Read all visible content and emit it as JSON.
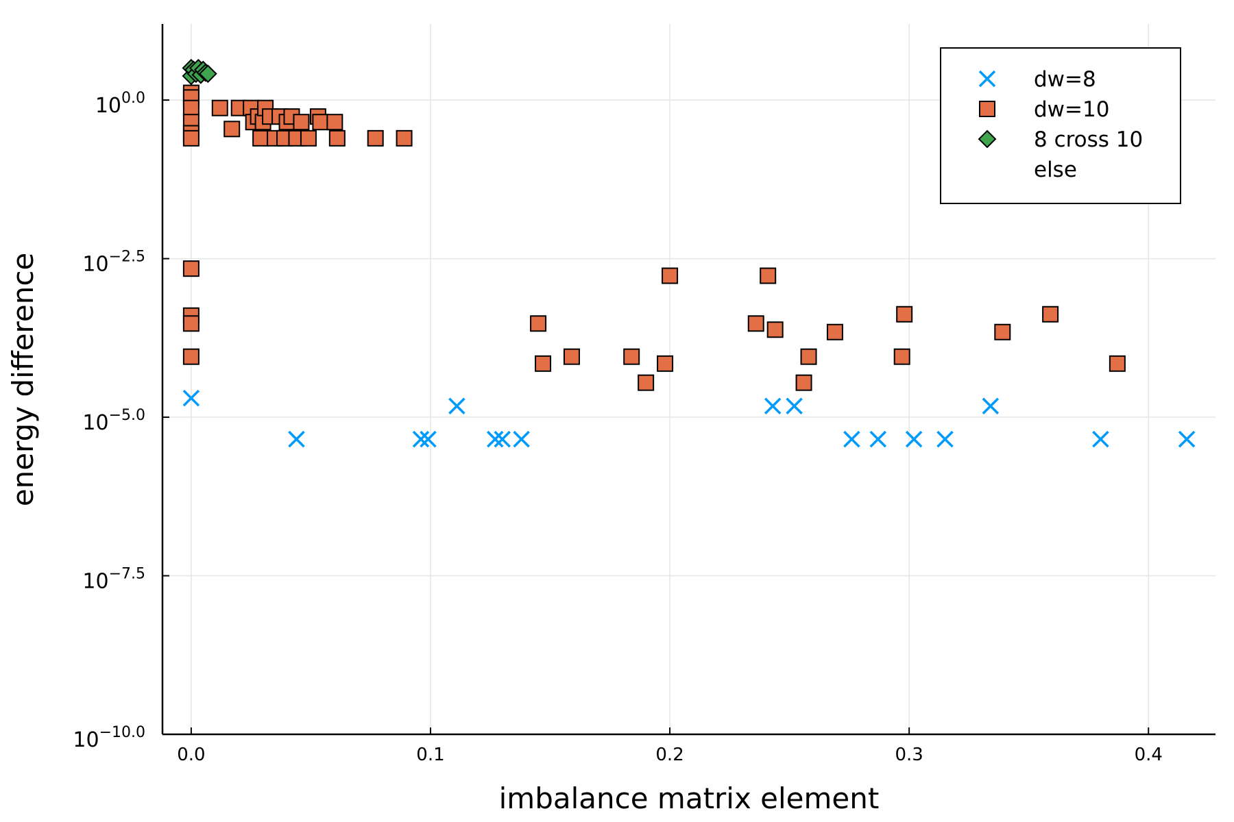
{
  "chart_data": {
    "type": "scatter",
    "title": "",
    "xlabel": "imbalance matrix element",
    "ylabel": "energy difference",
    "xlim": [
      -0.012,
      0.428
    ],
    "ylim_log10": [
      -10.0,
      1.2
    ],
    "yscale": "log10",
    "grid": true,
    "legend_position": "top-right",
    "x_ticks": [
      {
        "value": 0.0,
        "label": "0.0"
      },
      {
        "value": 0.1,
        "label": "0.1"
      },
      {
        "value": 0.2,
        "label": "0.2"
      },
      {
        "value": 0.3,
        "label": "0.3"
      },
      {
        "value": 0.4,
        "label": "0.4"
      }
    ],
    "y_ticks": [
      {
        "log10": 0.0,
        "base": "10",
        "exp": "0.0"
      },
      {
        "log10": -2.5,
        "base": "10",
        "exp": "−2.5"
      },
      {
        "log10": -5.0,
        "base": "10",
        "exp": "−5.0"
      },
      {
        "log10": -7.5,
        "base": "10",
        "exp": "−7.5"
      },
      {
        "log10": -10.0,
        "base": "10",
        "exp": "−10.0"
      }
    ],
    "series": [
      {
        "name": "dw=8",
        "marker": "x",
        "color": "#009AFA",
        "points": [
          [
            0.0,
            2e-05
          ],
          [
            0.044,
            4.5e-06
          ],
          [
            0.096,
            4.5e-06
          ],
          [
            0.099,
            4.5e-06
          ],
          [
            0.111,
            1.5e-05
          ],
          [
            0.127,
            4.5e-06
          ],
          [
            0.13,
            4.5e-06
          ],
          [
            0.138,
            4.5e-06
          ],
          [
            0.243,
            1.5e-05
          ],
          [
            0.252,
            1.5e-05
          ],
          [
            0.276,
            4.5e-06
          ],
          [
            0.287,
            4.5e-06
          ],
          [
            0.302,
            4.5e-06
          ],
          [
            0.315,
            4.5e-06
          ],
          [
            0.334,
            1.5e-05
          ],
          [
            0.38,
            4.5e-06
          ],
          [
            0.416,
            4.5e-06
          ]
        ]
      },
      {
        "name": "dw=10",
        "marker": "square",
        "color": "#E26F46",
        "points": [
          [
            0.0,
            1.3
          ],
          [
            0.0,
            1.1
          ],
          [
            0.0,
            0.75
          ],
          [
            0.0,
            0.45
          ],
          [
            0.0,
            0.3
          ],
          [
            0.0,
            0.25
          ],
          [
            0.012,
            0.75
          ],
          [
            0.017,
            0.35
          ],
          [
            0.02,
            0.75
          ],
          [
            0.025,
            0.75
          ],
          [
            0.026,
            0.45
          ],
          [
            0.028,
            0.55
          ],
          [
            0.029,
            0.25
          ],
          [
            0.03,
            0.45
          ],
          [
            0.031,
            0.75
          ],
          [
            0.033,
            0.55
          ],
          [
            0.035,
            0.25
          ],
          [
            0.037,
            0.55
          ],
          [
            0.039,
            0.25
          ],
          [
            0.04,
            0.45
          ],
          [
            0.042,
            0.55
          ],
          [
            0.044,
            0.25
          ],
          [
            0.046,
            0.45
          ],
          [
            0.049,
            0.25
          ],
          [
            0.053,
            0.55
          ],
          [
            0.054,
            0.45
          ],
          [
            0.06,
            0.45
          ],
          [
            0.061,
            0.25
          ],
          [
            0.077,
            0.25
          ],
          [
            0.089,
            0.25
          ],
          [
            0.0,
            0.0022
          ],
          [
            0.0,
            0.0004
          ],
          [
            0.0,
            0.0003
          ],
          [
            0.0,
            9e-05
          ],
          [
            0.145,
            0.0003
          ],
          [
            0.147,
            7e-05
          ],
          [
            0.159,
            9e-05
          ],
          [
            0.184,
            9e-05
          ],
          [
            0.19,
            3.5e-05
          ],
          [
            0.198,
            7e-05
          ],
          [
            0.2,
            0.0017
          ],
          [
            0.236,
            0.0003
          ],
          [
            0.241,
            0.0017
          ],
          [
            0.244,
            0.00024
          ],
          [
            0.256,
            3.5e-05
          ],
          [
            0.258,
            9e-05
          ],
          [
            0.269,
            0.00022
          ],
          [
            0.297,
            9e-05
          ],
          [
            0.298,
            0.00042
          ],
          [
            0.339,
            0.00022
          ],
          [
            0.359,
            0.00042
          ],
          [
            0.387,
            7e-05
          ]
        ]
      },
      {
        "name": "8 cross 10",
        "marker": "diamond",
        "color": "#3EA44E",
        "points": [
          [
            0.0,
            3.2
          ],
          [
            0.0,
            2.4
          ],
          [
            0.001,
            3.0
          ],
          [
            0.002,
            2.6
          ],
          [
            0.003,
            3.2
          ],
          [
            0.004,
            2.5
          ],
          [
            0.005,
            3.0
          ],
          [
            0.006,
            2.7
          ],
          [
            0.007,
            2.6
          ]
        ]
      },
      {
        "name": "else",
        "marker": "none",
        "color": "#C271D2",
        "points": []
      }
    ]
  }
}
